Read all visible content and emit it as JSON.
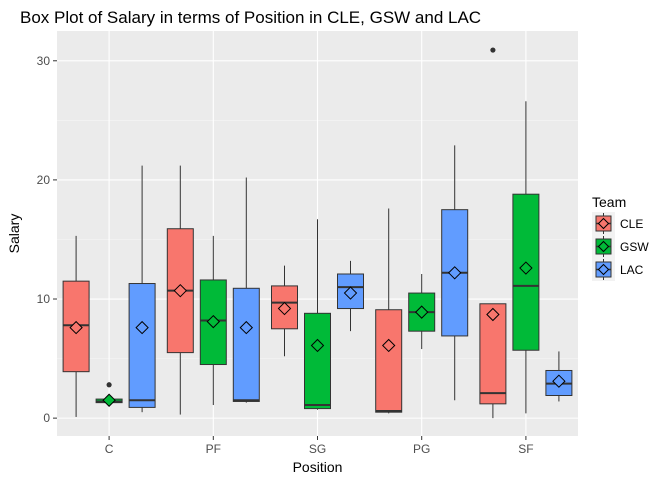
{
  "chart_data": {
    "type": "box",
    "title": "Box Plot of Salary in terms of Position in CLE, GSW and LAC",
    "xlabel": "Position",
    "ylabel": "Salary",
    "categories": [
      "C",
      "PF",
      "SG",
      "PG",
      "SF"
    ],
    "ylim": [
      -1.5,
      32.5
    ],
    "yticks": [
      0,
      10,
      20,
      30
    ],
    "grid": true,
    "legend": {
      "title": "Team",
      "position": "right",
      "entries": [
        {
          "name": "CLE",
          "color": "#F8766D"
        },
        {
          "name": "GSW",
          "color": "#00BA38"
        },
        {
          "name": "LAC",
          "color": "#619CFF"
        }
      ]
    },
    "series": [
      {
        "name": "CLE",
        "color": "#F8766D",
        "boxes": [
          {
            "category": "C",
            "min": 0.1,
            "q1": 3.9,
            "median": 7.8,
            "q3": 11.5,
            "max": 15.3,
            "mean": 7.6,
            "outliers": []
          },
          {
            "category": "PF",
            "min": 0.3,
            "q1": 5.5,
            "median": 10.7,
            "q3": 15.9,
            "max": 21.2,
            "mean": 10.7,
            "outliers": []
          },
          {
            "category": "SG",
            "min": 5.2,
            "q1": 7.5,
            "median": 9.7,
            "q3": 11.1,
            "max": 12.8,
            "mean": 9.2,
            "outliers": []
          },
          {
            "category": "PG",
            "min": 0.4,
            "q1": 0.5,
            "median": 0.6,
            "q3": 9.1,
            "max": 17.6,
            "mean": 6.1,
            "outliers": []
          },
          {
            "category": "SF",
            "min": 0.0,
            "q1": 1.2,
            "median": 2.1,
            "q3": 9.6,
            "max": 9.6,
            "mean": 8.7,
            "outliers": [
              30.9
            ]
          }
        ]
      },
      {
        "name": "GSW",
        "color": "#00BA38",
        "boxes": [
          {
            "category": "C",
            "min": 1.2,
            "q1": 1.3,
            "median": 1.4,
            "q3": 1.6,
            "max": 1.7,
            "mean": 1.5,
            "outliers": [
              2.8
            ]
          },
          {
            "category": "PF",
            "min": 1.1,
            "q1": 4.5,
            "median": 8.2,
            "q3": 11.6,
            "max": 15.3,
            "mean": 8.1,
            "outliers": []
          },
          {
            "category": "SG",
            "min": 0.7,
            "q1": 0.8,
            "median": 1.1,
            "q3": 8.8,
            "max": 16.7,
            "mean": 6.1,
            "outliers": []
          },
          {
            "category": "PG",
            "min": 5.8,
            "q1": 7.3,
            "median": 8.9,
            "q3": 10.5,
            "max": 12.1,
            "mean": 8.9,
            "outliers": []
          },
          {
            "category": "SF",
            "min": 0.4,
            "q1": 5.7,
            "median": 11.1,
            "q3": 18.8,
            "max": 26.6,
            "mean": 12.6,
            "outliers": []
          }
        ]
      },
      {
        "name": "LAC",
        "color": "#619CFF",
        "boxes": [
          {
            "category": "C",
            "min": 0.5,
            "q1": 0.9,
            "median": 1.5,
            "q3": 11.3,
            "max": 21.2,
            "mean": 7.6,
            "outliers": []
          },
          {
            "category": "PF",
            "min": 1.3,
            "q1": 1.4,
            "median": 1.5,
            "q3": 10.9,
            "max": 20.2,
            "mean": 7.6,
            "outliers": []
          },
          {
            "category": "SG",
            "min": 7.3,
            "q1": 9.2,
            "median": 11.0,
            "q3": 12.1,
            "max": 13.2,
            "mean": 10.5,
            "outliers": []
          },
          {
            "category": "PG",
            "min": 1.5,
            "q1": 6.9,
            "median": 12.2,
            "q3": 17.5,
            "max": 22.9,
            "mean": 12.2,
            "outliers": []
          },
          {
            "category": "SF",
            "min": 1.4,
            "q1": 1.9,
            "median": 2.9,
            "q3": 4.0,
            "max": 5.6,
            "mean": 3.1,
            "outliers": []
          }
        ]
      }
    ]
  }
}
